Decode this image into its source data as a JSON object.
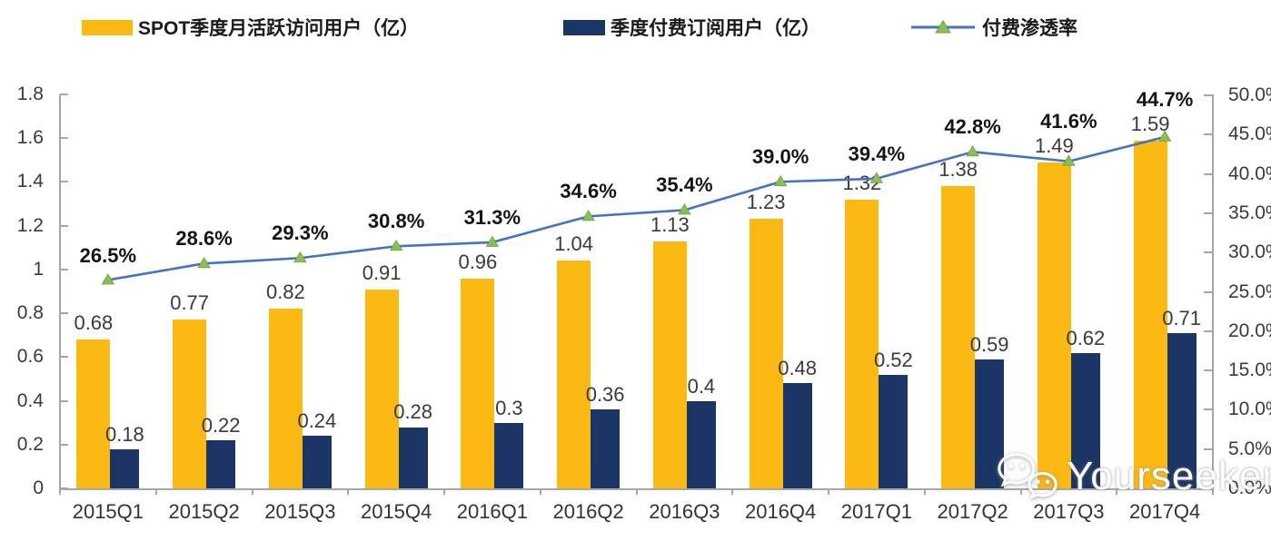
{
  "legend": {
    "items": [
      {
        "label": "SPOT季度月活跃访问用户（亿）",
        "type": "bar",
        "color": "#FBB914"
      },
      {
        "label": "季度付费订阅用户（亿）",
        "type": "bar",
        "color": "#1B3564"
      },
      {
        "label": "付费渗透率",
        "type": "line",
        "color": "#4472C4",
        "marker_color": "#8DBD55"
      }
    ]
  },
  "chart_data": {
    "type": "combo-bar-line",
    "title": "",
    "grid": false,
    "legend_position": "top",
    "categories": [
      "2015Q1",
      "2015Q2",
      "2015Q3",
      "2015Q4",
      "2016Q1",
      "2016Q2",
      "2016Q3",
      "2016Q4",
      "2017Q1",
      "2017Q2",
      "2017Q3",
      "2017Q4"
    ],
    "series": [
      {
        "name": "SPOT季度月活跃访问用户（亿）",
        "type": "bar",
        "axis": "left",
        "color": "#FBB914",
        "values": [
          0.68,
          0.77,
          0.82,
          0.91,
          0.96,
          1.04,
          1.13,
          1.23,
          1.32,
          1.38,
          1.49,
          1.59
        ],
        "labels": [
          "0.68",
          "0.77",
          "0.82",
          "0.91",
          "0.96",
          "1.04",
          "1.13",
          "1.23",
          "1.32",
          "1.38",
          "1.49",
          "1.59"
        ]
      },
      {
        "name": "季度付费订阅用户（亿）",
        "type": "bar",
        "axis": "left",
        "color": "#1B3564",
        "values": [
          0.18,
          0.22,
          0.24,
          0.28,
          0.3,
          0.36,
          0.4,
          0.48,
          0.52,
          0.59,
          0.62,
          0.71
        ],
        "labels": [
          "0.18",
          "0.22",
          "0.24",
          "0.28",
          "0.3",
          "0.36",
          "0.4",
          "0.48",
          "0.52",
          "0.59",
          "0.62",
          "0.71"
        ]
      },
      {
        "name": "付费渗透率",
        "type": "line",
        "axis": "right",
        "color": "#4472C4",
        "marker_color": "#8DBD55",
        "values": [
          26.5,
          28.6,
          29.3,
          30.8,
          31.3,
          34.6,
          35.4,
          39.0,
          39.4,
          42.8,
          41.6,
          44.7
        ],
        "labels": [
          "26.5%",
          "28.6%",
          "29.3%",
          "30.8%",
          "31.3%",
          "34.6%",
          "35.4%",
          "39.0%",
          "39.4%",
          "42.8%",
          "41.6%",
          "44.7%"
        ]
      }
    ],
    "left_axis": {
      "min": 0,
      "max": 1.8,
      "tick_labels": [
        "1.8",
        "1.6",
        "1.4",
        "1.2",
        "1",
        "0.8",
        "0.6",
        "0.4",
        "0.2",
        "0"
      ]
    },
    "right_axis": {
      "min": 0,
      "max": 50,
      "tick_labels": [
        "50.0%",
        "45.0%",
        "40.0%",
        "35.0%",
        "30.0%",
        "25.0%",
        "20.0%",
        "15.0%",
        "10.0%",
        "5.0%",
        "0.0%"
      ]
    }
  },
  "watermark": {
    "text": "Yourseeker"
  }
}
